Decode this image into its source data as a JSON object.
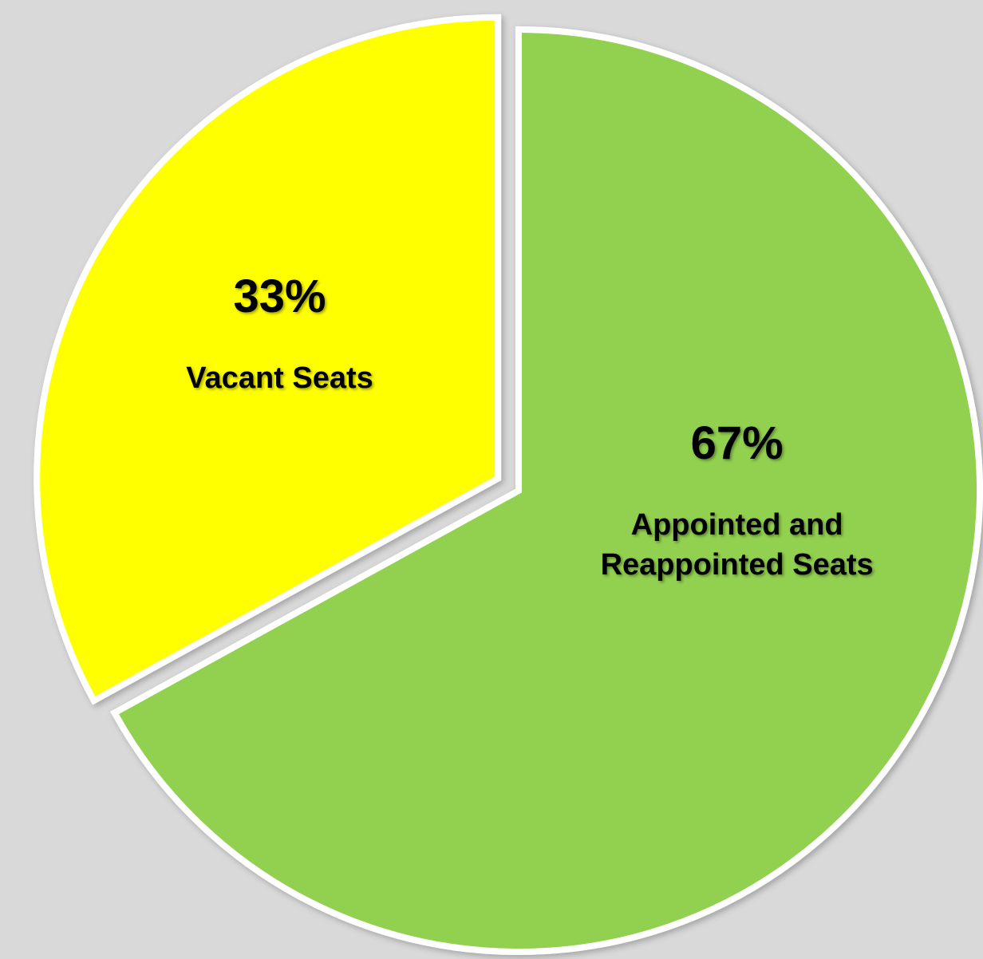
{
  "chart_data": {
    "type": "pie",
    "categories": [
      "Appointed and Reappointed Seats",
      "Vacant Seats"
    ],
    "values": [
      67,
      33
    ],
    "value_labels": [
      "67%",
      "33%"
    ],
    "colors": [
      "#92d050",
      "#ffff00"
    ]
  }
}
